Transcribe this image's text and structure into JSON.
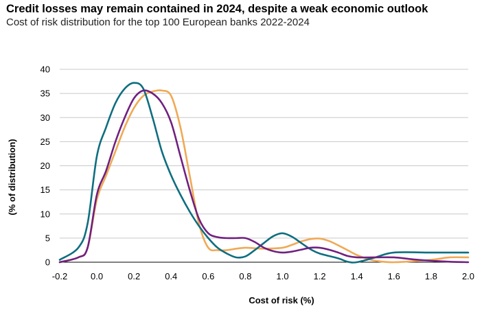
{
  "title": "Credit losses may remain contained in 2024, despite a weak economic outlook",
  "subtitle": "Cost of risk distribution for the top 100 European banks 2022-2024",
  "chart_data": {
    "type": "line",
    "xlabel": "Cost of risk (%)",
    "ylabel": "(% of distribution)",
    "xlim": [
      -0.2,
      2.0
    ],
    "ylim": [
      0,
      40
    ],
    "x_ticks": [
      "-0.2",
      "0.0",
      "0.2",
      "0.4",
      "0.6",
      "0.8",
      "1.0",
      "1.2",
      "1.4",
      "1.6",
      "1.8",
      "2.0"
    ],
    "y_ticks": [
      "0",
      "5",
      "10",
      "15",
      "20",
      "25",
      "30",
      "35",
      "40"
    ],
    "grid": "horizontal",
    "series": [
      {
        "color": "#0e6e80",
        "points": [
          [
            -0.2,
            0.5
          ],
          [
            -0.1,
            3
          ],
          [
            -0.05,
            8
          ],
          [
            0.0,
            22
          ],
          [
            0.05,
            28
          ],
          [
            0.1,
            33
          ],
          [
            0.15,
            36
          ],
          [
            0.2,
            37.2
          ],
          [
            0.25,
            36
          ],
          [
            0.3,
            30
          ],
          [
            0.35,
            23
          ],
          [
            0.4,
            18
          ],
          [
            0.45,
            14
          ],
          [
            0.5,
            10.5
          ],
          [
            0.55,
            7.5
          ],
          [
            0.6,
            5
          ],
          [
            0.65,
            3
          ],
          [
            0.7,
            1.8
          ],
          [
            0.75,
            1.0
          ],
          [
            0.8,
            1.2
          ],
          [
            0.85,
            2.5
          ],
          [
            0.9,
            4
          ],
          [
            0.95,
            5.4
          ],
          [
            1.0,
            6
          ],
          [
            1.05,
            5.3
          ],
          [
            1.1,
            4
          ],
          [
            1.15,
            2.7
          ],
          [
            1.2,
            1.8
          ],
          [
            1.3,
            0.8
          ],
          [
            1.35,
            0.1
          ],
          [
            1.4,
            0
          ],
          [
            1.5,
            1
          ],
          [
            1.6,
            2
          ],
          [
            1.8,
            2
          ],
          [
            2.0,
            2
          ]
        ]
      },
      {
        "color": "#f0a954",
        "points": [
          [
            -0.2,
            0
          ],
          [
            -0.1,
            1
          ],
          [
            -0.05,
            3
          ],
          [
            0.0,
            13
          ],
          [
            0.05,
            18
          ],
          [
            0.1,
            23
          ],
          [
            0.15,
            28
          ],
          [
            0.2,
            32
          ],
          [
            0.25,
            34.5
          ],
          [
            0.3,
            35.4
          ],
          [
            0.35,
            35.6
          ],
          [
            0.4,
            34.5
          ],
          [
            0.45,
            28
          ],
          [
            0.5,
            18
          ],
          [
            0.55,
            8
          ],
          [
            0.6,
            3
          ],
          [
            0.65,
            2.5
          ],
          [
            0.7,
            2.5
          ],
          [
            0.75,
            2.8
          ],
          [
            0.8,
            3
          ],
          [
            0.85,
            2.9
          ],
          [
            0.9,
            2.8
          ],
          [
            1.0,
            3
          ],
          [
            1.05,
            3.6
          ],
          [
            1.1,
            4.3
          ],
          [
            1.15,
            4.8
          ],
          [
            1.2,
            4.9
          ],
          [
            1.25,
            4.4
          ],
          [
            1.3,
            3.5
          ],
          [
            1.35,
            2.5
          ],
          [
            1.4,
            1.5
          ],
          [
            1.45,
            0.8
          ],
          [
            1.5,
            0.3
          ],
          [
            1.6,
            0
          ],
          [
            1.8,
            0.5
          ],
          [
            1.9,
            1
          ],
          [
            2.0,
            1
          ]
        ]
      },
      {
        "color": "#70207f",
        "points": [
          [
            -0.2,
            0
          ],
          [
            -0.1,
            1
          ],
          [
            -0.05,
            3
          ],
          [
            0.0,
            14
          ],
          [
            0.05,
            19
          ],
          [
            0.1,
            25
          ],
          [
            0.15,
            30
          ],
          [
            0.2,
            34
          ],
          [
            0.25,
            35.6
          ],
          [
            0.3,
            35
          ],
          [
            0.35,
            33
          ],
          [
            0.4,
            29
          ],
          [
            0.45,
            22
          ],
          [
            0.5,
            15
          ],
          [
            0.55,
            9
          ],
          [
            0.6,
            6
          ],
          [
            0.65,
            5.2
          ],
          [
            0.7,
            5
          ],
          [
            0.75,
            5
          ],
          [
            0.8,
            5
          ],
          [
            0.85,
            4.2
          ],
          [
            0.9,
            3
          ],
          [
            0.95,
            2.3
          ],
          [
            1.0,
            2
          ],
          [
            1.05,
            2.2
          ],
          [
            1.1,
            2.6
          ],
          [
            1.15,
            3
          ],
          [
            1.2,
            3
          ],
          [
            1.25,
            2.6
          ],
          [
            1.3,
            2
          ],
          [
            1.35,
            1.3
          ],
          [
            1.4,
            1
          ],
          [
            1.5,
            1
          ],
          [
            1.6,
            1
          ],
          [
            1.7,
            0.6
          ],
          [
            1.8,
            0.3
          ],
          [
            1.9,
            0.1
          ],
          [
            2.0,
            0
          ]
        ]
      }
    ]
  }
}
